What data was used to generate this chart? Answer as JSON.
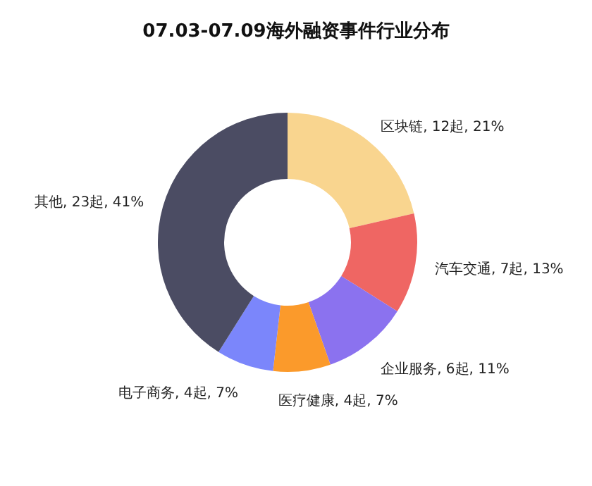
{
  "chart_data": {
    "type": "donut",
    "title": "07.03-07.09海外融资事件行业分布",
    "categories": [
      "区块链",
      "汽车交通",
      "企业服务",
      "医疗健康",
      "电子商务",
      "其他"
    ],
    "values": [
      12,
      7,
      6,
      4,
      4,
      23
    ],
    "colors": [
      "#f9d58f",
      "#ef6663",
      "#8b72ef",
      "#fb9a2b",
      "#7b86fb",
      "#4b4c63"
    ],
    "value_labels": [
      ", 12起, 21%",
      ", 7起, 13%",
      ", 6起, 11%",
      ", 4起, 7%",
      ", 4起, 7%",
      ", 23起, 41%"
    ],
    "legend": false
  }
}
